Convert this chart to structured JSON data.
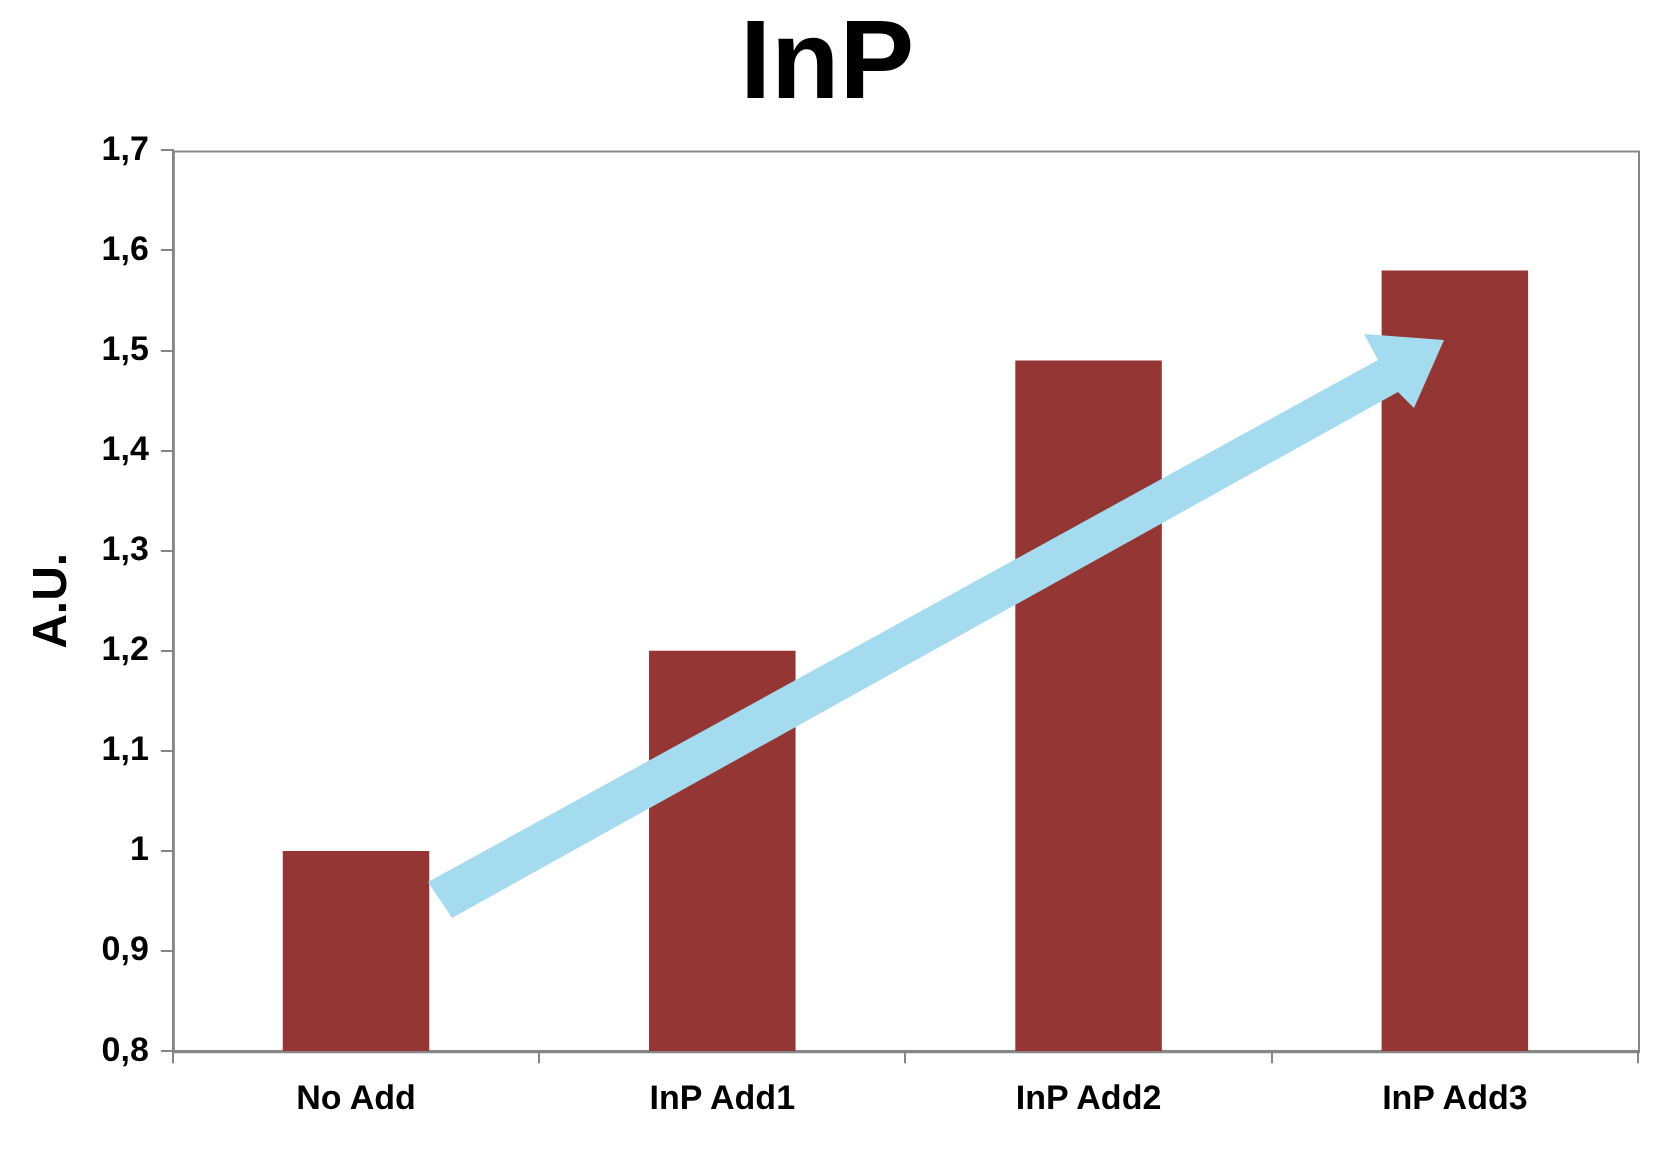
{
  "chart_data": {
    "type": "bar",
    "title": "InP",
    "ylabel": "A.U.",
    "categories": [
      "No Add",
      "InP Add1",
      "InP Add2",
      "InP Add3"
    ],
    "values": [
      1.0,
      1.2,
      1.49,
      1.58
    ],
    "color": "#943634",
    "ylim": [
      0.8,
      1.7
    ],
    "yticks": [
      {
        "value": 0.8,
        "label": "0,8"
      },
      {
        "value": 0.9,
        "label": "0,9"
      },
      1,
      {
        "value": 1.1,
        "label": "1,1"
      },
      {
        "value": 1.2,
        "label": "1,2"
      },
      {
        "value": 1.3,
        "label": "1,3"
      },
      {
        "value": 1.4,
        "label": "1,4"
      },
      {
        "value": 1.5,
        "label": "1,5"
      },
      {
        "value": 1.6,
        "label": "1,6"
      },
      {
        "value": 1.7,
        "label": "1,7"
      }
    ],
    "grid": false,
    "legend": false
  }
}
